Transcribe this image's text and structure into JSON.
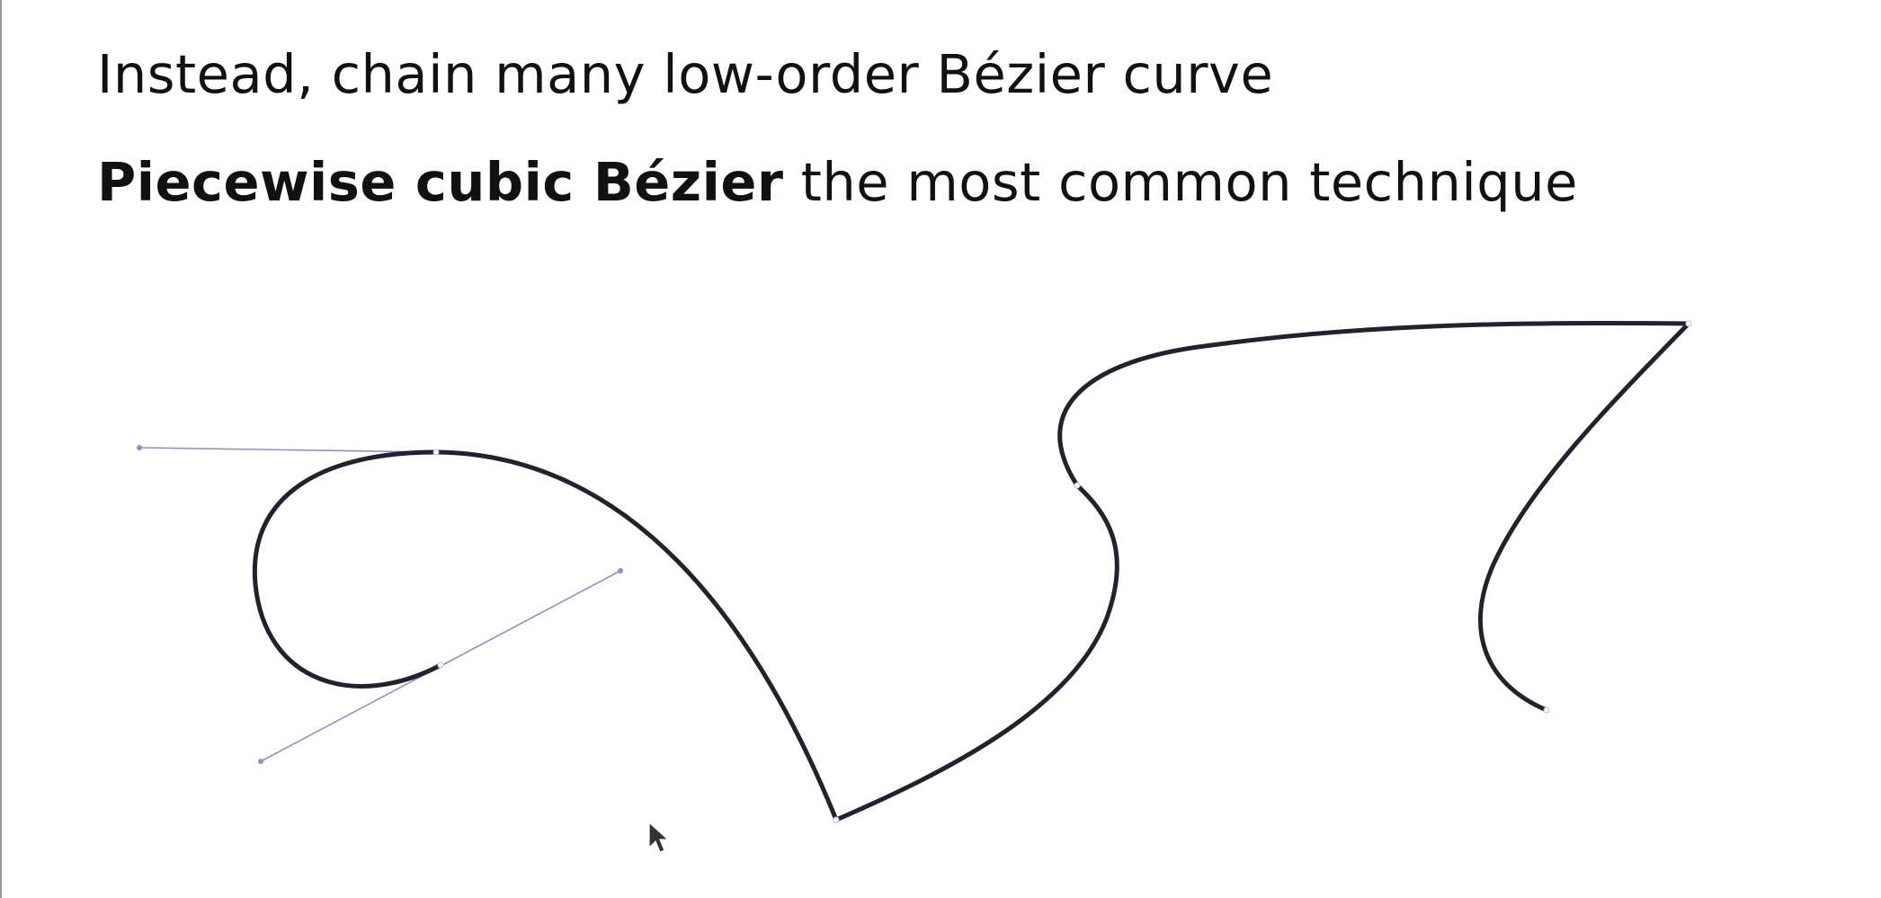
{
  "slide": {
    "heading_line_1": "Instead, chain many low-order Bézier curve",
    "heading_line_2_bold": "Piecewise cubic Bézier",
    "heading_line_2_rest": " the most common technique"
  },
  "colors": {
    "curve": "#22222e",
    "handle": "#8f8fcf",
    "text": "#111111",
    "background": "#ffffff"
  },
  "icons": {
    "cursor": "mouse-pointer-icon"
  }
}
